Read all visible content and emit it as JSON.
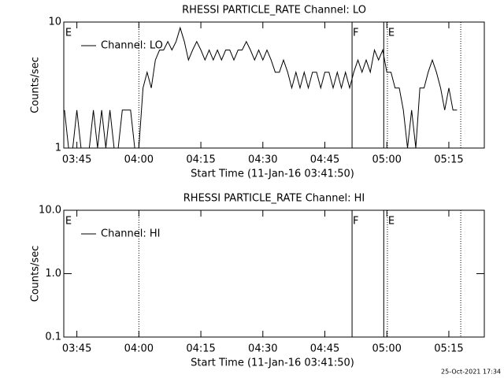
{
  "chart_data": [
    {
      "type": "line",
      "title": "RHESSI PARTICLE_RATE Channel: LO",
      "xlabel": "Start Time (11-Jan-16 03:41:50)",
      "ylabel": "Counts/sec",
      "log_y": true,
      "legend": "upper left",
      "xlim": [
        "03:41:50",
        "05:23:35"
      ],
      "xticks": [
        "03:45",
        "04:00",
        "04:15",
        "04:30",
        "04:45",
        "05:00",
        "05:15"
      ],
      "ylim": [
        1,
        10
      ],
      "yticks": [
        1,
        10
      ],
      "x": [
        "03:42",
        "03:43",
        "03:44",
        "03:45",
        "03:46",
        "03:47",
        "03:48",
        "03:49",
        "03:50",
        "03:51",
        "03:52",
        "03:53",
        "03:54",
        "03:55",
        "03:56",
        "03:57",
        "03:58",
        "03:59",
        "04:00",
        "04:01",
        "04:02",
        "04:03",
        "04:04",
        "04:05",
        "04:06",
        "04:07",
        "04:08",
        "04:09",
        "04:10",
        "04:11",
        "04:12",
        "04:13",
        "04:14",
        "04:15",
        "04:16",
        "04:17",
        "04:18",
        "04:19",
        "04:20",
        "04:21",
        "04:22",
        "04:23",
        "04:24",
        "04:25",
        "04:26",
        "04:27",
        "04:28",
        "04:29",
        "04:30",
        "04:31",
        "04:32",
        "04:33",
        "04:34",
        "04:35",
        "04:36",
        "04:37",
        "04:38",
        "04:39",
        "04:40",
        "04:41",
        "04:42",
        "04:43",
        "04:44",
        "04:45",
        "04:46",
        "04:47",
        "04:48",
        "04:49",
        "04:50",
        "04:51",
        "04:52",
        "04:53",
        "04:54",
        "04:55",
        "04:56",
        "04:57",
        "04:58",
        "04:59",
        "05:00",
        "05:01",
        "05:02",
        "05:03",
        "05:04",
        "05:05",
        "05:06",
        "05:07",
        "05:08",
        "05:09",
        "05:10",
        "05:11",
        "05:12",
        "05:13",
        "05:14",
        "05:15",
        "05:16",
        "05:17"
      ],
      "series": [
        {
          "name": "Channel: LO",
          "color": "#000000",
          "values": [
            2,
            1,
            1,
            2,
            1,
            1,
            1,
            2,
            1,
            2,
            1,
            2,
            1,
            1,
            2,
            2,
            2,
            1,
            1,
            3,
            4,
            3,
            5,
            6,
            6,
            7,
            6,
            7,
            9,
            7,
            5,
            6,
            7,
            6,
            5,
            6,
            5,
            6,
            5,
            6,
            6,
            5,
            6,
            6,
            7,
            6,
            5,
            6,
            5,
            6,
            5,
            4,
            4,
            5,
            4,
            3,
            4,
            3,
            4,
            3,
            4,
            4,
            3,
            4,
            4,
            3,
            4,
            3,
            4,
            3,
            4,
            5,
            4,
            5,
            4,
            6,
            5,
            6,
            4,
            4,
            3,
            3,
            2,
            1,
            2,
            1,
            3,
            3,
            4,
            5,
            4,
            3,
            2,
            3,
            2,
            2
          ]
        }
      ],
      "vlines": [
        {
          "x": "04:00:00",
          "style": "dotted"
        },
        {
          "x": "04:51:35",
          "style": "solid"
        },
        {
          "x": "04:59:15",
          "style": "solid"
        },
        {
          "x": "05:00:08",
          "style": "dotted"
        },
        {
          "x": "05:17:53",
          "style": "dotted"
        }
      ],
      "flags": [
        {
          "x": "03:42:00",
          "label": "E"
        },
        {
          "x": "04:51:35",
          "label": "F"
        },
        {
          "x": "05:00:08",
          "label": "E"
        }
      ]
    },
    {
      "type": "line",
      "title": "RHESSI PARTICLE_RATE Channel: HI",
      "xlabel": "Start Time (11-Jan-16 03:41:50)",
      "ylabel": "Counts/sec",
      "log_y": true,
      "legend": "upper left",
      "xlim": [
        "03:41:50",
        "05:23:35"
      ],
      "xticks": [
        "03:45",
        "04:00",
        "04:15",
        "04:30",
        "04:45",
        "05:00",
        "05:15"
      ],
      "ylim": [
        0.1,
        10
      ],
      "yticks": [
        {
          "value": 0.1,
          "label": "0.1"
        },
        {
          "value": 1,
          "label": "1.0"
        },
        {
          "value": 10,
          "label": "10.0"
        }
      ],
      "x": [],
      "series": [
        {
          "name": "Channel: HI",
          "color": "#000000",
          "values": []
        }
      ],
      "vlines": [
        {
          "x": "04:00:00",
          "style": "dotted"
        },
        {
          "x": "04:51:35",
          "style": "solid"
        },
        {
          "x": "04:59:15",
          "style": "solid"
        },
        {
          "x": "05:00:08",
          "style": "dotted"
        },
        {
          "x": "05:17:53",
          "style": "dotted"
        }
      ],
      "flags": [
        {
          "x": "03:42:00",
          "label": "E"
        },
        {
          "x": "04:51:35",
          "label": "F"
        },
        {
          "x": "05:00:08",
          "label": "E"
        }
      ]
    }
  ],
  "footer": "25-Oct-2021 17:34"
}
